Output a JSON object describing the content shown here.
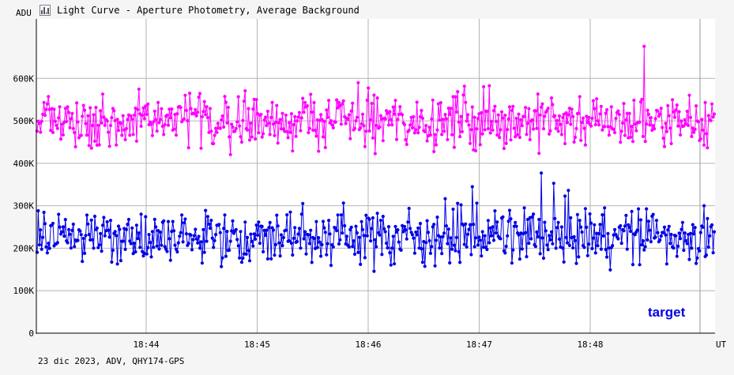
{
  "window": {
    "title": "Light Curve - Aperture Photometry, Average Background",
    "icon": "light-curve-icon"
  },
  "footer": {
    "text": "23 dic 2023, ADV, QHY174-GPS"
  },
  "colors": {
    "background": "#f5f5f5",
    "plot_background": "#ffffff",
    "grid": "#b4b4b4",
    "series_background": "#ff00ff",
    "series_target": "#0000e6",
    "axis": "#000000"
  },
  "chart_data": {
    "type": "line",
    "ylabel": "ADU",
    "xlabel": "UT",
    "ylim": [
      0,
      740000
    ],
    "y_ticks": [
      0,
      100000,
      200000,
      300000,
      400000,
      500000,
      600000
    ],
    "y_tick_labels": [
      "0",
      "100K",
      "200K",
      "300K",
      "400K",
      "500K",
      "600K"
    ],
    "x_range_minutes": [
      18.71,
      19.85
    ],
    "x_ticks": [
      18.733,
      18.75,
      18.767,
      18.783,
      18.8
    ],
    "x_tick_labels": [
      "18:44",
      "18:45",
      "18:46",
      "18:47",
      "18:48"
    ],
    "grid": true,
    "annotations": [
      {
        "text": "target"
      }
    ],
    "series": [
      {
        "name": "target",
        "color": "#0000e6",
        "mean": 230000,
        "spread": 60000,
        "range": [
          55000,
          430000
        ],
        "points_shown": 600
      },
      {
        "name": "",
        "color": "#ff00ff",
        "mean": 500000,
        "spread": 55000,
        "range": [
          330000,
          695000
        ],
        "points_shown": 600
      }
    ]
  }
}
